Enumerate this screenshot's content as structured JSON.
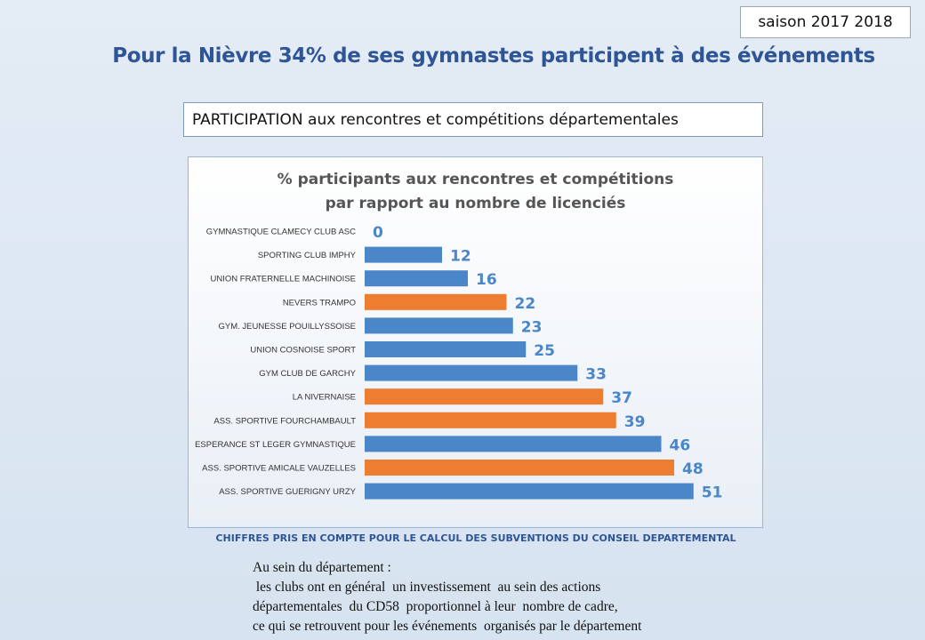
{
  "season": "saison 2017 2018",
  "title": "Pour la Nièvre 34% de ses gymnastes participent à des événements",
  "section_label": "PARTICIPATION aux rencontres et compétitions départementales",
  "chart_data": {
    "type": "bar",
    "orientation": "horizontal",
    "title_lines": [
      "% participants aux rencontres et compétitions",
      "par rapport au nombre de licenciés"
    ],
    "categories": [
      "GYMNASTIQUE CLAMECY CLUB ASC",
      "SPORTING CLUB IMPHY",
      "UNION FRATERNELLE MACHINOISE",
      "NEVERS TRAMPO",
      "GYM. JEUNESSE POUILLYSSOISE",
      "UNION COSNOISE SPORT",
      "GYM CLUB DE GARCHY",
      "LA NIVERNAISE",
      "ASS. SPORTIVE FOURCHAMBAULT",
      "ESPERANCE ST LEGER GYMNASTIQUE",
      "ASS. SPORTIVE AMICALE VAUZELLES",
      "ASS. SPORTIVE GUERIGNY URZY"
    ],
    "values": [
      0,
      12,
      16,
      22,
      23,
      25,
      33,
      37,
      39,
      46,
      48,
      51
    ],
    "highlighted": [
      false,
      false,
      false,
      true,
      false,
      false,
      false,
      true,
      true,
      false,
      true,
      false
    ],
    "xlim": [
      0,
      55
    ],
    "colors": {
      "default": "#4a86c8",
      "highlight": "#ed7d31",
      "label": "#4a86c8"
    },
    "grid": false,
    "legend": "none",
    "data_labels": true
  },
  "footnote": "CHIFFRES PRIS EN COMPTE POUR LE CALCUL DES SUBVENTIONS DU CONSEIL DEPARTEMENTAL",
  "notes": [
    "Au sein du département :",
    " les clubs ont en général  un investissement  au sein des actions",
    "départementales  du CD58  proportionnel à leur  nombre de cadre,",
    "ce qui se retrouvent pour les événements  organisés par le département"
  ]
}
